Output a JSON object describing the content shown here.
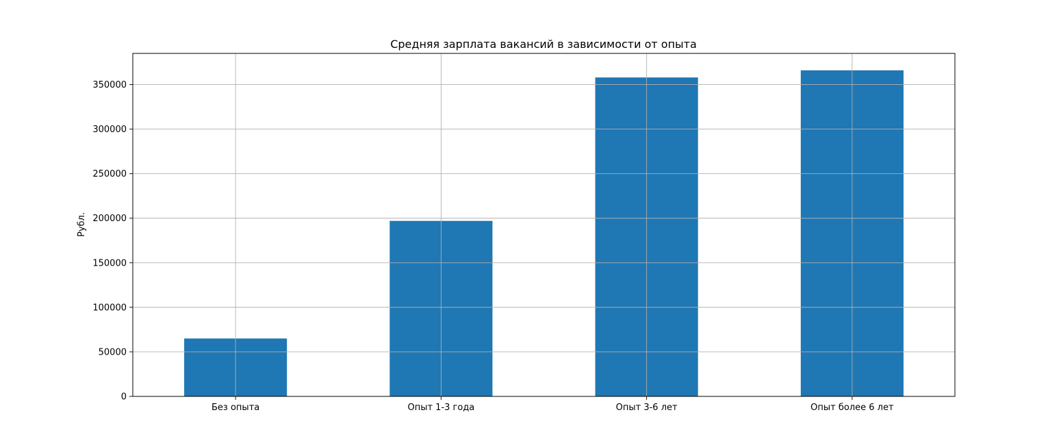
{
  "chart_data": {
    "type": "bar",
    "title": "Средняя зарплата вакансий в зависимости от опыта",
    "xlabel": "",
    "ylabel": "Рубл.",
    "categories": [
      "Без опыта",
      "Опыт 1-3 года",
      "Опыт 3-6 лет",
      "Опыт более 6 лет"
    ],
    "values": [
      65000,
      197000,
      358000,
      366000
    ],
    "ylim": [
      0,
      385000
    ],
    "yticks": [
      0,
      50000,
      100000,
      150000,
      200000,
      250000,
      300000,
      350000
    ],
    "ytick_labels": [
      "0",
      "50000",
      "100000",
      "150000",
      "200000",
      "250000",
      "300000",
      "350000"
    ],
    "grid": true,
    "bar_color": "#1f77b4",
    "grid_color": "#b0b0b0"
  }
}
